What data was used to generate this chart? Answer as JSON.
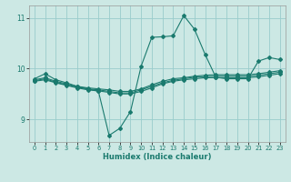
{
  "xlabel": "Humidex (Indice chaleur)",
  "background_color": "#cce8e4",
  "line_color": "#1a7a6e",
  "grid_color": "#99cccc",
  "xlim": [
    -0.5,
    23.5
  ],
  "ylim": [
    8.55,
    11.25
  ],
  "yticks": [
    9,
    10,
    11
  ],
  "xticks": [
    0,
    1,
    2,
    3,
    4,
    5,
    6,
    7,
    8,
    9,
    10,
    11,
    12,
    13,
    14,
    15,
    16,
    17,
    18,
    19,
    20,
    21,
    22,
    23
  ],
  "lines": [
    {
      "x": [
        0,
        1,
        2,
        3,
        4,
        5,
        6,
        7,
        8,
        9,
        10,
        11,
        12,
        13,
        14,
        15,
        16,
        17,
        18,
        19,
        20,
        21,
        22,
        23
      ],
      "y": [
        9.8,
        9.9,
        9.78,
        9.72,
        9.65,
        9.6,
        9.55,
        8.68,
        8.82,
        9.15,
        10.05,
        10.62,
        10.63,
        10.65,
        11.05,
        10.78,
        10.28,
        9.83,
        9.8,
        9.8,
        9.8,
        10.15,
        10.22,
        10.18
      ]
    },
    {
      "x": [
        0,
        1,
        2,
        3,
        4,
        5,
        6,
        7,
        8,
        9,
        10,
        11,
        12,
        13,
        14,
        15,
        16,
        17,
        18,
        19,
        20,
        21,
        22,
        23
      ],
      "y": [
        9.78,
        9.82,
        9.75,
        9.7,
        9.65,
        9.62,
        9.6,
        9.58,
        9.55,
        9.55,
        9.6,
        9.68,
        9.75,
        9.8,
        9.82,
        9.85,
        9.87,
        9.88,
        9.88,
        9.88,
        9.88,
        9.9,
        9.93,
        9.96
      ]
    },
    {
      "x": [
        0,
        1,
        2,
        3,
        4,
        5,
        6,
        7,
        8,
        9,
        10,
        11,
        12,
        13,
        14,
        15,
        16,
        17,
        18,
        19,
        20,
        21,
        22,
        23
      ],
      "y": [
        9.76,
        9.8,
        9.73,
        9.68,
        9.63,
        9.6,
        9.58,
        9.55,
        9.52,
        9.52,
        9.58,
        9.65,
        9.72,
        9.77,
        9.8,
        9.83,
        9.84,
        9.85,
        9.85,
        9.85,
        9.85,
        9.87,
        9.9,
        9.93
      ]
    },
    {
      "x": [
        0,
        1,
        2,
        3,
        4,
        5,
        6,
        7,
        8,
        9,
        10,
        11,
        12,
        13,
        14,
        15,
        16,
        17,
        18,
        19,
        20,
        21,
        22,
        23
      ],
      "y": [
        9.75,
        9.78,
        9.72,
        9.67,
        9.62,
        9.58,
        9.56,
        9.53,
        9.5,
        9.5,
        9.55,
        9.62,
        9.7,
        9.75,
        9.78,
        9.8,
        9.82,
        9.82,
        9.82,
        9.82,
        9.82,
        9.84,
        9.87,
        9.9
      ]
    }
  ]
}
